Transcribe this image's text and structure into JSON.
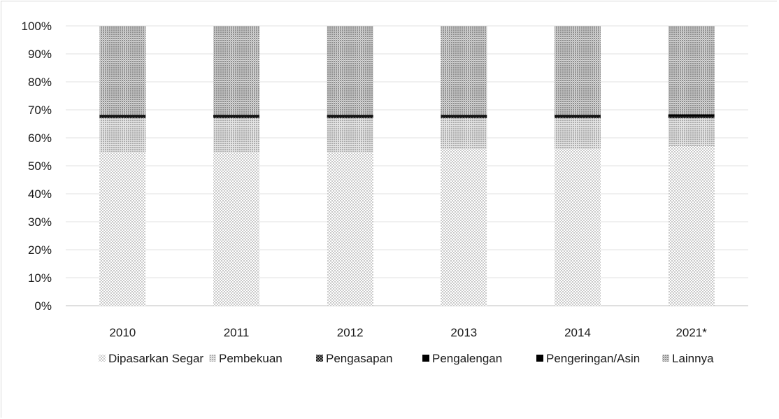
{
  "chart_data": {
    "type": "bar",
    "stacked": true,
    "percent": true,
    "categories": [
      "2010",
      "2011",
      "2012",
      "2013",
      "2014",
      "2021*"
    ],
    "ylim": [
      0,
      100
    ],
    "yticks": [
      "0%",
      "10%",
      "20%",
      "30%",
      "40%",
      "50%",
      "60%",
      "70%",
      "80%",
      "90%",
      "100%"
    ],
    "grid": true,
    "legend_position": "bottom",
    "series": [
      {
        "name": "Dipasarkan Segar",
        "values": [
          55,
          55,
          55,
          56,
          56,
          57
        ],
        "color": "#f4f4f4",
        "pattern": "dots-fine"
      },
      {
        "name": "Pembekuan",
        "values": [
          12,
          12,
          12,
          11,
          11,
          10
        ],
        "color": "#cfcfcf",
        "pattern": "dots-dense"
      },
      {
        "name": "Pengasapan",
        "values": [
          0.3,
          0.3,
          0.3,
          0.3,
          0.3,
          0.3
        ],
        "color": "#2a2a2a",
        "pattern": "check"
      },
      {
        "name": "Pengalengan",
        "values": [
          0.3,
          0.3,
          0.3,
          0.3,
          0.3,
          0.3
        ],
        "color": "#000000",
        "pattern": "solid"
      },
      {
        "name": "Pengeringan/Asin",
        "values": [
          0.6,
          0.6,
          0.6,
          0.6,
          0.6,
          0.8
        ],
        "color": "#0d0d0d",
        "pattern": "solid"
      },
      {
        "name": "Lainnya",
        "values": [
          31.8,
          31.8,
          31.8,
          31.8,
          31.8,
          31.6
        ],
        "color": "#bdbdbd",
        "pattern": "dots-medium"
      }
    ]
  }
}
